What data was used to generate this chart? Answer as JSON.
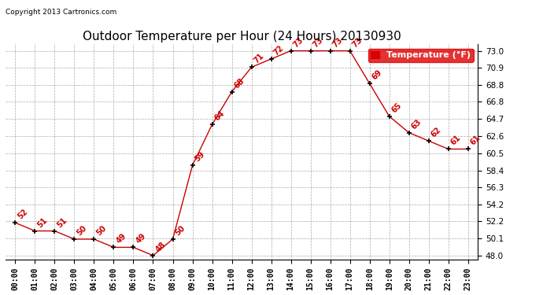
{
  "title": "Outdoor Temperature per Hour (24 Hours) 20130930",
  "copyright": "Copyright 2013 Cartronics.com",
  "legend_label": "Temperature (°F)",
  "hours": [
    "00:00",
    "01:00",
    "02:00",
    "03:00",
    "04:00",
    "05:00",
    "06:00",
    "07:00",
    "08:00",
    "09:00",
    "10:00",
    "11:00",
    "12:00",
    "13:00",
    "14:00",
    "15:00",
    "16:00",
    "17:00",
    "18:00",
    "19:00",
    "20:00",
    "21:00",
    "22:00",
    "23:00"
  ],
  "temps": [
    52,
    51,
    51,
    50,
    50,
    49,
    49,
    48,
    50,
    59,
    64,
    68,
    71,
    72,
    73,
    73,
    73,
    73,
    69,
    65,
    63,
    62,
    61,
    61
  ],
  "ylim_min": 47.5,
  "ylim_max": 73.8,
  "yticks": [
    48.0,
    50.1,
    52.2,
    54.2,
    56.3,
    58.4,
    60.5,
    62.6,
    64.7,
    66.8,
    68.8,
    70.9,
    73.0
  ],
  "line_color": "#cc0000",
  "marker_color": "#000000",
  "label_color": "#cc0000",
  "bg_color": "#ffffff",
  "grid_color": "#aaaaaa",
  "title_fontsize": 11,
  "copyright_fontsize": 6.5,
  "tick_label_fontsize": 7,
  "data_label_fontsize": 7,
  "legend_bg": "#dd0000",
  "legend_text_color": "#ffffff",
  "legend_fontsize": 8
}
